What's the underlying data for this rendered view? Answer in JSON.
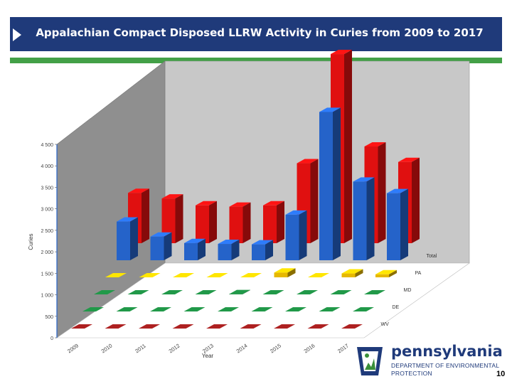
{
  "header": {
    "title": "Appalachian Compact Disposed LLRW Activity in Curies from 2009 to 2017"
  },
  "chart_data": {
    "type": "bar",
    "subtype": "3d-grouped",
    "title": "Appalachian Compact Disposed LLRW Activity in Curies from 2009 to 2017",
    "xlabel": "Year",
    "ylabel": "Curies",
    "categories": [
      "2009",
      "2010",
      "2011",
      "2012",
      "2013",
      "2014",
      "2015",
      "2016",
      "2017"
    ],
    "y_ticks": [
      "0",
      "500",
      "1 000",
      "1 500",
      "2 000",
      "2 500",
      "3 000",
      "3 500",
      "4 000",
      "4 500"
    ],
    "ylim": [
      0,
      4500
    ],
    "grid": false,
    "series": [
      {
        "name": "WV",
        "color": "#8b1a1a",
        "values": [
          0,
          0,
          0,
          0,
          0,
          0,
          0,
          0,
          0
        ]
      },
      {
        "name": "DE",
        "color": "#1a7a3a",
        "values": [
          0,
          0,
          0,
          0,
          0,
          0,
          0,
          0,
          0
        ]
      },
      {
        "name": "MD",
        "color": "#1a7a3a",
        "values": [
          0,
          0,
          0,
          0,
          5,
          0,
          0,
          0,
          0
        ]
      },
      {
        "name": "PA",
        "color": "#e6b800",
        "values": [
          0,
          0,
          0,
          0,
          0,
          110,
          0,
          90,
          70
        ]
      },
      {
        "name": "Total",
        "color": "#2563c9",
        "values": [
          900,
          550,
          400,
          380,
          370,
          1060,
          3450,
          1830,
          1560
        ]
      },
      {
        "name": "",
        "color": "#e01010",
        "values": [
          1170,
          1040,
          880,
          850,
          880,
          1860,
          4400,
          2250,
          1890
        ]
      }
    ],
    "legend": "series labels along right edge of each row"
  },
  "logo": {
    "name": "pennsylvania",
    "dept_line1": "DEPARTMENT OF ENVIRONMENTAL",
    "dept_line2": "PROTECTION"
  },
  "page_number": "10"
}
